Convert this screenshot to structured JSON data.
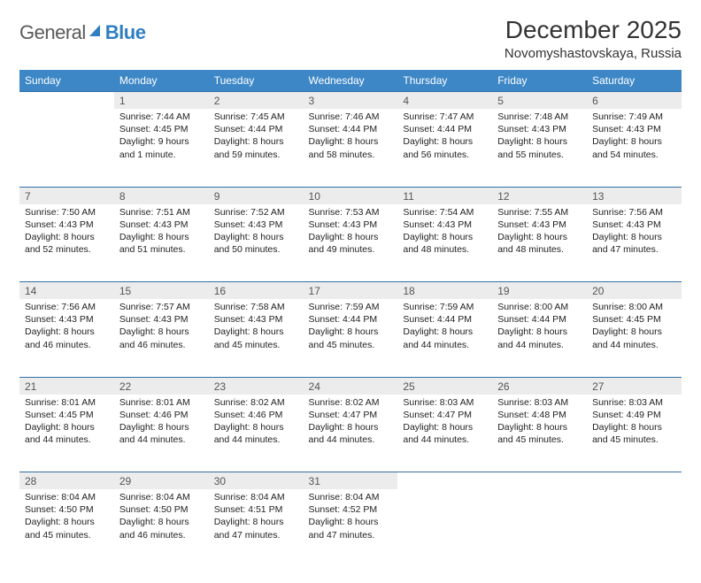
{
  "brand": {
    "name_a": "General",
    "name_b": "Blue"
  },
  "title": "December 2025",
  "location": "Novomyshastovskaya, Russia",
  "dow": [
    "Sunday",
    "Monday",
    "Tuesday",
    "Wednesday",
    "Thursday",
    "Friday",
    "Saturday"
  ],
  "colors": {
    "header_bg": "#3d87c7",
    "header_text": "#ffffff",
    "daynum_bg": "#ececec",
    "rule": "#2f6fa6",
    "text": "#222222",
    "logo_gray": "#5a5a5a",
    "logo_blue": "#2f7fc2"
  },
  "weeks": [
    [
      null,
      {
        "n": "1",
        "sr": "7:44 AM",
        "ss": "4:45 PM",
        "dl": "9 hours and 1 minute."
      },
      {
        "n": "2",
        "sr": "7:45 AM",
        "ss": "4:44 PM",
        "dl": "8 hours and 59 minutes."
      },
      {
        "n": "3",
        "sr": "7:46 AM",
        "ss": "4:44 PM",
        "dl": "8 hours and 58 minutes."
      },
      {
        "n": "4",
        "sr": "7:47 AM",
        "ss": "4:44 PM",
        "dl": "8 hours and 56 minutes."
      },
      {
        "n": "5",
        "sr": "7:48 AM",
        "ss": "4:43 PM",
        "dl": "8 hours and 55 minutes."
      },
      {
        "n": "6",
        "sr": "7:49 AM",
        "ss": "4:43 PM",
        "dl": "8 hours and 54 minutes."
      }
    ],
    [
      {
        "n": "7",
        "sr": "7:50 AM",
        "ss": "4:43 PM",
        "dl": "8 hours and 52 minutes."
      },
      {
        "n": "8",
        "sr": "7:51 AM",
        "ss": "4:43 PM",
        "dl": "8 hours and 51 minutes."
      },
      {
        "n": "9",
        "sr": "7:52 AM",
        "ss": "4:43 PM",
        "dl": "8 hours and 50 minutes."
      },
      {
        "n": "10",
        "sr": "7:53 AM",
        "ss": "4:43 PM",
        "dl": "8 hours and 49 minutes."
      },
      {
        "n": "11",
        "sr": "7:54 AM",
        "ss": "4:43 PM",
        "dl": "8 hours and 48 minutes."
      },
      {
        "n": "12",
        "sr": "7:55 AM",
        "ss": "4:43 PM",
        "dl": "8 hours and 48 minutes."
      },
      {
        "n": "13",
        "sr": "7:56 AM",
        "ss": "4:43 PM",
        "dl": "8 hours and 47 minutes."
      }
    ],
    [
      {
        "n": "14",
        "sr": "7:56 AM",
        "ss": "4:43 PM",
        "dl": "8 hours and 46 minutes."
      },
      {
        "n": "15",
        "sr": "7:57 AM",
        "ss": "4:43 PM",
        "dl": "8 hours and 46 minutes."
      },
      {
        "n": "16",
        "sr": "7:58 AM",
        "ss": "4:43 PM",
        "dl": "8 hours and 45 minutes."
      },
      {
        "n": "17",
        "sr": "7:59 AM",
        "ss": "4:44 PM",
        "dl": "8 hours and 45 minutes."
      },
      {
        "n": "18",
        "sr": "7:59 AM",
        "ss": "4:44 PM",
        "dl": "8 hours and 44 minutes."
      },
      {
        "n": "19",
        "sr": "8:00 AM",
        "ss": "4:44 PM",
        "dl": "8 hours and 44 minutes."
      },
      {
        "n": "20",
        "sr": "8:00 AM",
        "ss": "4:45 PM",
        "dl": "8 hours and 44 minutes."
      }
    ],
    [
      {
        "n": "21",
        "sr": "8:01 AM",
        "ss": "4:45 PM",
        "dl": "8 hours and 44 minutes."
      },
      {
        "n": "22",
        "sr": "8:01 AM",
        "ss": "4:46 PM",
        "dl": "8 hours and 44 minutes."
      },
      {
        "n": "23",
        "sr": "8:02 AM",
        "ss": "4:46 PM",
        "dl": "8 hours and 44 minutes."
      },
      {
        "n": "24",
        "sr": "8:02 AM",
        "ss": "4:47 PM",
        "dl": "8 hours and 44 minutes."
      },
      {
        "n": "25",
        "sr": "8:03 AM",
        "ss": "4:47 PM",
        "dl": "8 hours and 44 minutes."
      },
      {
        "n": "26",
        "sr": "8:03 AM",
        "ss": "4:48 PM",
        "dl": "8 hours and 45 minutes."
      },
      {
        "n": "27",
        "sr": "8:03 AM",
        "ss": "4:49 PM",
        "dl": "8 hours and 45 minutes."
      }
    ],
    [
      {
        "n": "28",
        "sr": "8:04 AM",
        "ss": "4:50 PM",
        "dl": "8 hours and 45 minutes."
      },
      {
        "n": "29",
        "sr": "8:04 AM",
        "ss": "4:50 PM",
        "dl": "8 hours and 46 minutes."
      },
      {
        "n": "30",
        "sr": "8:04 AM",
        "ss": "4:51 PM",
        "dl": "8 hours and 47 minutes."
      },
      {
        "n": "31",
        "sr": "8:04 AM",
        "ss": "4:52 PM",
        "dl": "8 hours and 47 minutes."
      },
      null,
      null,
      null
    ]
  ],
  "labels": {
    "sunrise": "Sunrise:",
    "sunset": "Sunset:",
    "daylight": "Daylight:"
  }
}
